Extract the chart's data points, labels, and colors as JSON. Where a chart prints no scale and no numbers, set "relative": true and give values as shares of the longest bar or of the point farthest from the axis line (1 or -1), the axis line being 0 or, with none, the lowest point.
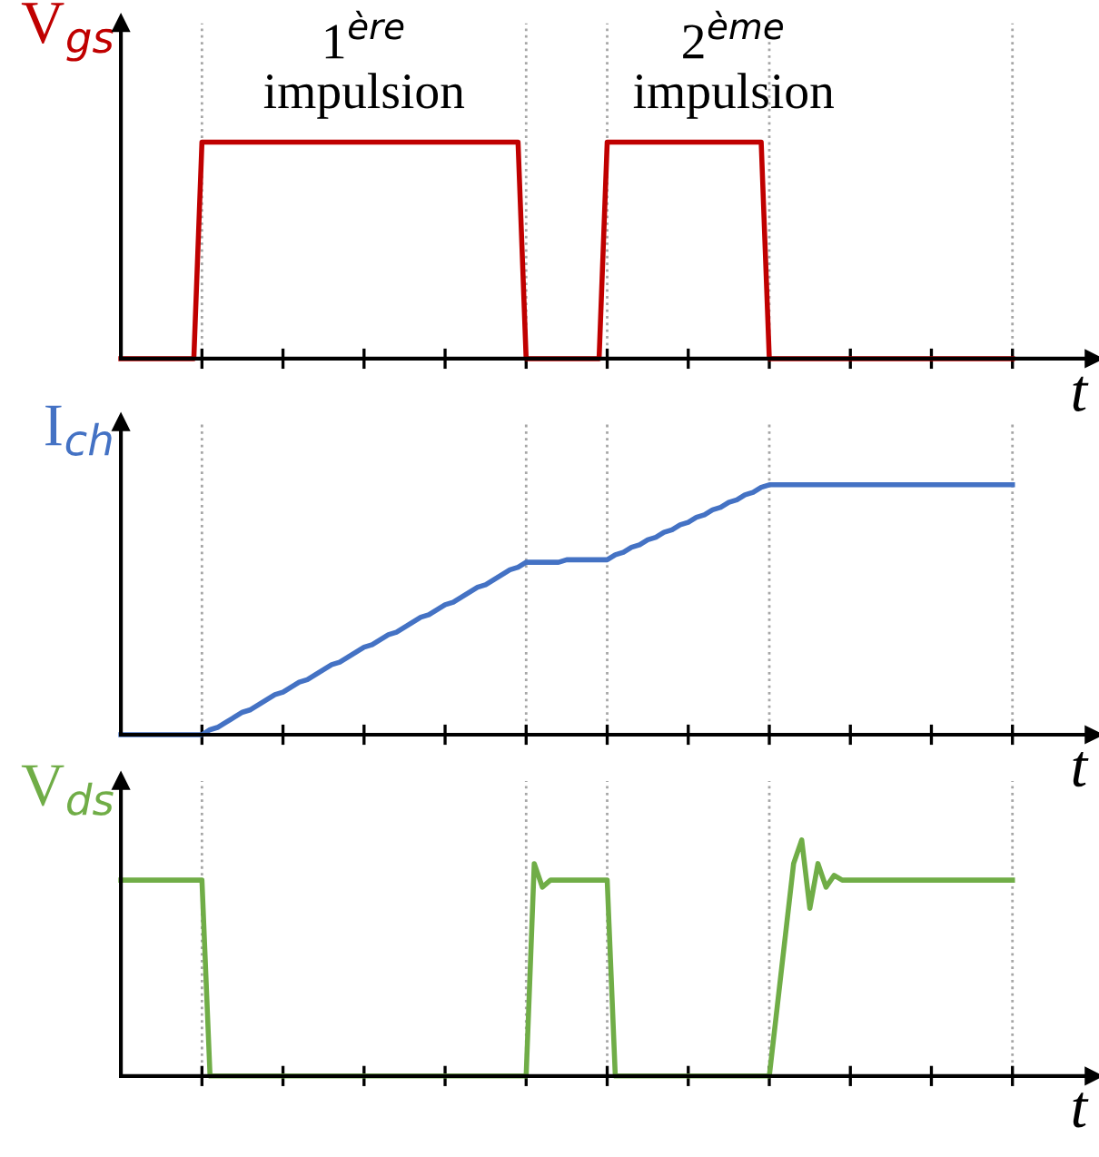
{
  "chart_data": [
    {
      "type": "line",
      "relative": true,
      "ylabel": "V$_{gs}$",
      "xlabel": "t",
      "categories": [
        null,
        null,
        null,
        null,
        null,
        null,
        null,
        null,
        null,
        null,
        null,
        null,
        null,
        null,
        null,
        null,
        null,
        null,
        null,
        null,
        null,
        null,
        null,
        null,
        null,
        null,
        null,
        null,
        null,
        null,
        null,
        null,
        null,
        null,
        null,
        null,
        null,
        null,
        null,
        null,
        null,
        null,
        null,
        null,
        null,
        null,
        null,
        null,
        null,
        null,
        null,
        null,
        null,
        null,
        null,
        null,
        null,
        null,
        null,
        null,
        null,
        null,
        null,
        null,
        null,
        null,
        null,
        null,
        null,
        null,
        null,
        null,
        null,
        null,
        null,
        null,
        null,
        null,
        null,
        null,
        null,
        null,
        null,
        null,
        null,
        null,
        null,
        null,
        null,
        null,
        null,
        null,
        null,
        null,
        null,
        null,
        null,
        null,
        null,
        null,
        null,
        null,
        null,
        null,
        null,
        null,
        null,
        null,
        null,
        null,
        null
      ],
      "grid": "x",
      "legend": false,
      "marker": "none",
      "line_style": "solid",
      "series": [
        {
          "color": "#c00000",
          "values": [
            0,
            0,
            0,
            0,
            0,
            0,
            0,
            0,
            0,
            0,
            1,
            1,
            1,
            1,
            1,
            1,
            1,
            1,
            1,
            1,
            1,
            1,
            1,
            1,
            1,
            1,
            1,
            1,
            1,
            1,
            1,
            1,
            1,
            1,
            1,
            1,
            1,
            1,
            1,
            1,
            1,
            1,
            1,
            1,
            1,
            1,
            1,
            1,
            1,
            1,
            0,
            0,
            0,
            0,
            0,
            0,
            0,
            0,
            0,
            0,
            1,
            1,
            1,
            1,
            1,
            1,
            1,
            1,
            1,
            1,
            1,
            1,
            1,
            1,
            1,
            1,
            1,
            1,
            1,
            1,
            0,
            0,
            0,
            0,
            0,
            0,
            0,
            0,
            0,
            0,
            0,
            0,
            0,
            0,
            0,
            0,
            0,
            0,
            0,
            0,
            0,
            0,
            0,
            0,
            0,
            0,
            0,
            0,
            0,
            0,
            0
          ]
        }
      ],
      "annotations": [
        "1$^{ère}$\nimpulsion",
        "2$^{ème}$\nimpulsion"
      ]
    },
    {
      "type": "line",
      "relative": true,
      "ylabel": "I$_{ch}$",
      "xlabel": "t",
      "categories": [
        null,
        null,
        null,
        null,
        null,
        null,
        null,
        null,
        null,
        null,
        null,
        null,
        null,
        null,
        null,
        null,
        null,
        null,
        null,
        null,
        null,
        null,
        null,
        null,
        null,
        null,
        null,
        null,
        null,
        null,
        null,
        null,
        null,
        null,
        null,
        null,
        null,
        null,
        null,
        null,
        null,
        null,
        null,
        null,
        null,
        null,
        null,
        null,
        null,
        null,
        null,
        null,
        null,
        null,
        null,
        null,
        null,
        null,
        null,
        null,
        null,
        null,
        null,
        null,
        null,
        null,
        null,
        null,
        null,
        null,
        null,
        null,
        null,
        null,
        null,
        null,
        null,
        null,
        null,
        null,
        null,
        null,
        null,
        null,
        null,
        null,
        null,
        null,
        null,
        null,
        null,
        null,
        null,
        null,
        null,
        null,
        null,
        null,
        null,
        null,
        null,
        null,
        null,
        null,
        null,
        null,
        null,
        null,
        null,
        null,
        null
      ],
      "grid": "x",
      "legend": false,
      "marker": "none",
      "line_style": "solid",
      "series": [
        {
          "color": "#4472c4",
          "values": [
            0,
            0,
            0,
            0,
            0,
            0,
            0,
            0,
            0,
            0,
            0,
            0.02,
            0.03,
            0.05,
            0.07,
            0.09,
            0.1,
            0.12,
            0.14,
            0.16,
            0.17,
            0.19,
            0.21,
            0.22,
            0.24,
            0.26,
            0.28,
            0.29,
            0.31,
            0.33,
            0.35,
            0.36,
            0.38,
            0.4,
            0.41,
            0.43,
            0.45,
            0.47,
            0.48,
            0.5,
            0.52,
            0.53,
            0.55,
            0.57,
            0.59,
            0.6,
            0.62,
            0.64,
            0.66,
            0.67,
            0.69,
            0.69,
            0.69,
            0.69,
            0.69,
            0.7,
            0.7,
            0.7,
            0.7,
            0.7,
            0.7,
            0.72,
            0.73,
            0.75,
            0.76,
            0.78,
            0.79,
            0.81,
            0.82,
            0.84,
            0.85,
            0.87,
            0.88,
            0.9,
            0.91,
            0.93,
            0.94,
            0.96,
            0.97,
            0.99,
            1,
            1,
            1,
            1,
            1,
            1,
            1,
            1,
            1,
            1,
            1,
            1,
            1,
            1,
            1,
            1,
            1,
            1,
            1,
            1,
            1,
            1,
            1,
            1,
            1,
            1,
            1,
            1,
            1,
            1,
            1
          ]
        }
      ]
    },
    {
      "type": "line",
      "relative": true,
      "ylabel": "V$_{ds}$",
      "xlabel": "t",
      "categories": [
        null,
        null,
        null,
        null,
        null,
        null,
        null,
        null,
        null,
        null,
        null,
        null,
        null,
        null,
        null,
        null,
        null,
        null,
        null,
        null,
        null,
        null,
        null,
        null,
        null,
        null,
        null,
        null,
        null,
        null,
        null,
        null,
        null,
        null,
        null,
        null,
        null,
        null,
        null,
        null,
        null,
        null,
        null,
        null,
        null,
        null,
        null,
        null,
        null,
        null,
        null,
        null,
        null,
        null,
        null,
        null,
        null,
        null,
        null,
        null,
        null,
        null,
        null,
        null,
        null,
        null,
        null,
        null,
        null,
        null,
        null,
        null,
        null,
        null,
        null,
        null,
        null,
        null,
        null,
        null,
        null,
        null,
        null,
        null,
        null,
        null,
        null,
        null,
        null,
        null,
        null,
        null,
        null,
        null,
        null,
        null,
        null,
        null,
        null,
        null,
        null,
        null,
        null,
        null,
        null,
        null,
        null,
        null,
        null,
        null,
        null
      ],
      "grid": "x",
      "legend": false,
      "marker": "none",
      "line_style": "solid",
      "series": [
        {
          "color": "#70ad47",
          "values": [
            0.83,
            0.83,
            0.83,
            0.83,
            0.83,
            0.83,
            0.83,
            0.83,
            0.83,
            0.83,
            0.83,
            0,
            0,
            0,
            0,
            0,
            0,
            0,
            0,
            0,
            0,
            0,
            0,
            0,
            0,
            0,
            0,
            0,
            0,
            0,
            0,
            0,
            0,
            0,
            0,
            0,
            0,
            0,
            0,
            0,
            0,
            0,
            0,
            0,
            0,
            0,
            0,
            0,
            0,
            0,
            0,
            0.9,
            0.8,
            0.83,
            0.83,
            0.83,
            0.83,
            0.83,
            0.83,
            0.83,
            0.83,
            0,
            0,
            0,
            0,
            0,
            0,
            0,
            0,
            0,
            0,
            0,
            0,
            0,
            0,
            0,
            0,
            0,
            0,
            0,
            0,
            0.3,
            0.6,
            0.9,
            1,
            0.71,
            0.9,
            0.8,
            0.85,
            0.83,
            0.83,
            0.83,
            0.83,
            0.83,
            0.83,
            0.83,
            0.83,
            0.83,
            0.83,
            0.83,
            0.83,
            0.83,
            0.83,
            0.83,
            0.83,
            0.83,
            0.83,
            0.83,
            0.83,
            0.83,
            0.83
          ]
        }
      ]
    }
  ]
}
